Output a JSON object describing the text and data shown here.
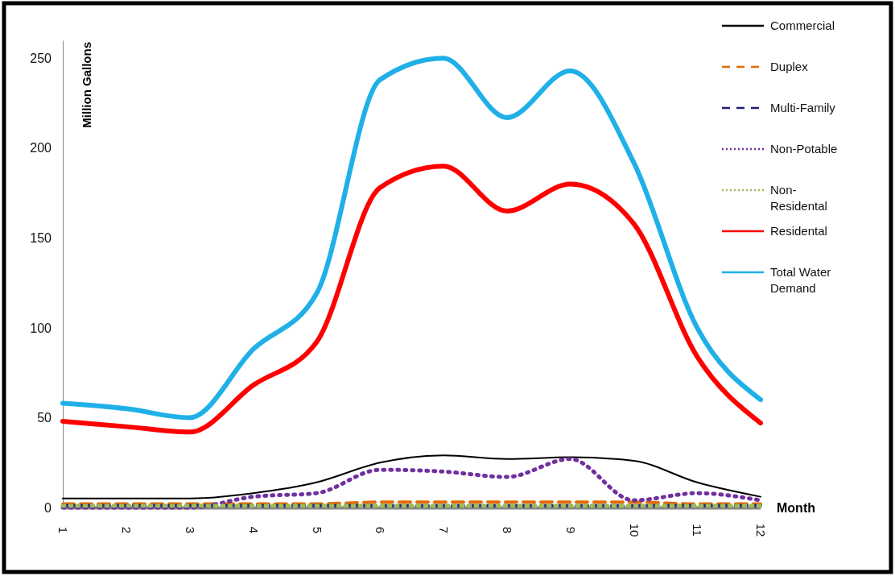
{
  "chart_data": {
    "type": "line",
    "xlabel": "Month",
    "ylabel": "Million Gallons",
    "categories": [
      "1",
      "2",
      "3",
      "4",
      "5",
      "6",
      "7",
      "8",
      "9",
      "10",
      "11",
      "12"
    ],
    "ylim": [
      0,
      260
    ],
    "yticks": [
      0,
      50,
      100,
      150,
      200,
      250
    ],
    "legend": "right",
    "series": [
      {
        "name": "Commercial",
        "color": "#000000",
        "line_style": "solid",
        "values": [
          5,
          5,
          5,
          8,
          14,
          25,
          29,
          27,
          28,
          26,
          14,
          6
        ]
      },
      {
        "name": "Duplex",
        "color": "#e36c09",
        "line_style": "dashed",
        "values": [
          2,
          2,
          2,
          2,
          2,
          3,
          3,
          3,
          3,
          3,
          2,
          2
        ]
      },
      {
        "name": "Multi-Family",
        "color": "#1f1f7a",
        "line_style": "dashed",
        "values": [
          1,
          1,
          1,
          1,
          1,
          1,
          1,
          1,
          1,
          1,
          1,
          1
        ]
      },
      {
        "name": "Non-Potable",
        "color": "#7030a0",
        "line_style": "dotted",
        "values": [
          0,
          0,
          0,
          6,
          8,
          21,
          20,
          17,
          27,
          4,
          8,
          4
        ]
      },
      {
        "name": "Non-Residental",
        "color": "#9bbb59",
        "line_style": "dotted",
        "values": [
          1,
          1,
          1,
          1,
          1,
          1,
          1,
          1,
          1,
          1,
          1,
          1
        ]
      },
      {
        "name": "Residental",
        "color": "#ff0000",
        "line_style": "solid",
        "values": [
          48,
          45,
          42,
          68,
          92,
          178,
          190,
          165,
          180,
          158,
          84,
          47
        ]
      },
      {
        "name": "Total Water Demand",
        "color": "#1fb0e8",
        "line_style": "solid",
        "values": [
          58,
          55,
          50,
          88,
          119,
          238,
          250,
          217,
          243,
          192,
          100,
          60
        ]
      }
    ]
  }
}
